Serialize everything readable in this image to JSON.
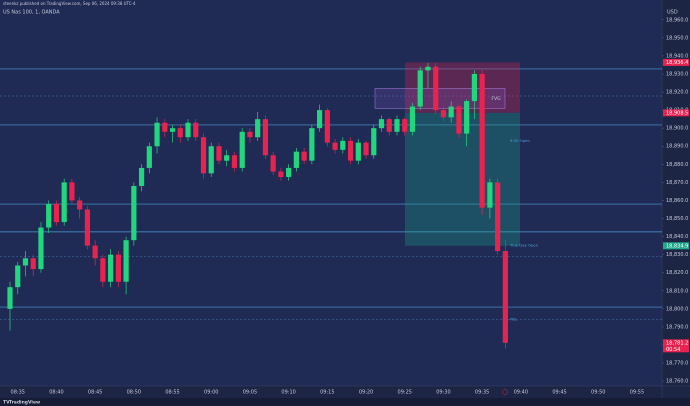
{
  "header": {
    "publisher": "steenkz published on TradingView.com, Sep 06, 2024 09:38 UTC-4",
    "symbol": "US Nas 100, 1, OANDA",
    "currency": "USD",
    "brand": "TradingView"
  },
  "chart_data": {
    "type": "candlestick",
    "categories": [
      null,
      "08:35",
      null,
      null,
      null,
      null,
      "08:40",
      null,
      null,
      null,
      null,
      "08:45",
      null,
      null,
      null,
      null,
      "08:50",
      null,
      null,
      null,
      null,
      "08:55",
      null,
      null,
      null,
      null,
      "09:00",
      null,
      null,
      null,
      null,
      "09:05",
      null,
      null,
      null,
      null,
      "09:10",
      null,
      null,
      null,
      null,
      "09:15",
      null,
      null,
      null,
      null,
      "09:20",
      null,
      null,
      null,
      null,
      "09:25",
      null,
      null,
      null,
      null,
      "09:30",
      null,
      null,
      null,
      null,
      "09:35",
      null,
      null,
      null,
      null,
      "09:40",
      null,
      null,
      null,
      null,
      "09:45",
      null,
      null,
      null,
      null,
      "09:50",
      null,
      null,
      null,
      null,
      "09:55",
      null,
      null,
      null,
      null
    ],
    "open": [
      18800,
      18812,
      18824,
      18828,
      18822,
      18845,
      18858,
      18848,
      18870,
      18860,
      18855,
      18835,
      18828,
      18815,
      18830,
      18815,
      18838,
      18868,
      18878,
      18890,
      18903,
      18898,
      18900,
      18895,
      18903,
      18895,
      18875,
      18890,
      18882,
      18885,
      18878,
      18898,
      18895,
      18905,
      18885,
      18876,
      18873,
      18878,
      18887,
      18882,
      18900,
      18910,
      18892,
      18888,
      18893,
      18882,
      18892,
      18885,
      18900,
      18905,
      18898,
      18905,
      18898,
      18912,
      18932,
      18934,
      18910,
      18906,
      18912,
      18897,
      18915,
      18930,
      18856,
      18870,
      18832,
      null,
      null,
      null,
      null,
      null,
      null,
      null,
      null,
      null,
      null,
      null,
      null,
      null,
      null,
      null,
      null,
      null,
      null,
      null,
      null,
      null
    ],
    "high": [
      18815,
      18826,
      18832,
      18830,
      18848,
      18860,
      18860,
      18872,
      18872,
      18862,
      18857,
      18838,
      18830,
      18833,
      18832,
      18840,
      18870,
      18880,
      18892,
      18906,
      18905,
      18902,
      18902,
      18905,
      18905,
      18897,
      18892,
      18892,
      18888,
      18887,
      18900,
      18900,
      18909,
      18907,
      18887,
      18878,
      18880,
      18889,
      18889,
      18902,
      18913,
      18911,
      18894,
      18895,
      18895,
      18894,
      18893,
      18902,
      18907,
      18906,
      18907,
      18906,
      18914,
      18934,
      18936,
      18936,
      18912,
      18915,
      18913,
      18916,
      18932,
      18932,
      18872,
      18872,
      18838,
      null,
      null,
      null,
      null,
      null,
      null,
      null,
      null,
      null,
      null,
      null,
      null,
      null,
      null,
      null,
      null,
      null,
      null,
      null,
      null,
      null
    ],
    "low": [
      18788,
      18808,
      18818,
      18818,
      18820,
      18842,
      18846,
      18846,
      18858,
      18850,
      18833,
      18824,
      18812,
      18812,
      18812,
      18808,
      18835,
      18865,
      18875,
      18886,
      18895,
      18892,
      18892,
      18893,
      18893,
      18872,
      18873,
      18880,
      18879,
      18876,
      18876,
      18892,
      18893,
      18883,
      18874,
      18871,
      18871,
      18876,
      18880,
      18880,
      18898,
      18890,
      18886,
      18886,
      18880,
      18880,
      18883,
      18883,
      18898,
      18896,
      18896,
      18896,
      18896,
      18910,
      18922,
      18908,
      18904,
      18903,
      18895,
      18890,
      18905,
      18852,
      18850,
      18830,
      18778,
      null,
      null,
      null,
      null,
      null,
      null,
      null,
      null,
      null,
      null,
      null,
      null,
      null,
      null,
      null,
      null,
      null,
      null,
      null,
      null,
      null
    ],
    "close": [
      18812,
      18824,
      18828,
      18822,
      18845,
      18858,
      18848,
      18870,
      18860,
      18855,
      18835,
      18828,
      18815,
      18830,
      18815,
      18838,
      18868,
      18878,
      18890,
      18903,
      18898,
      18900,
      18895,
      18903,
      18895,
      18875,
      18890,
      18882,
      18885,
      18878,
      18898,
      18895,
      18905,
      18885,
      18876,
      18873,
      18878,
      18887,
      18882,
      18900,
      18910,
      18892,
      18888,
      18893,
      18882,
      18892,
      18885,
      18900,
      18905,
      18898,
      18905,
      18898,
      18912,
      18932,
      18934,
      18910,
      18906,
      18912,
      18897,
      18915,
      18930,
      18856,
      18870,
      18832,
      18781.2,
      null,
      null,
      null,
      null,
      null,
      null,
      null,
      null,
      null,
      null,
      null,
      null,
      null,
      null,
      null,
      null,
      null,
      null,
      null,
      null,
      null
    ],
    "up_color": "#22d67e",
    "down_color": "#e8234f",
    "ylim": [
      18757.3,
      18964.3
    ],
    "yticks": [
      {
        "value": 18760,
        "label": "18,760.0"
      },
      {
        "value": 18770,
        "label": "18,770.0"
      },
      {
        "value": 18780,
        "label": "18,780.0"
      },
      {
        "value": 18790,
        "label": "18,790.0"
      },
      {
        "value": 18800,
        "label": "18,800.0"
      },
      {
        "value": 18810,
        "label": "18,810.0"
      },
      {
        "value": 18820,
        "label": "18,820.0"
      },
      {
        "value": 18830,
        "label": "18,830.0"
      },
      {
        "value": 18840,
        "label": "18,840.0"
      },
      {
        "value": 18850,
        "label": "18,850.0"
      },
      {
        "value": 18860,
        "label": "18,860.0"
      },
      {
        "value": 18870,
        "label": "18,870.0"
      },
      {
        "value": 18880,
        "label": "18,880.0"
      },
      {
        "value": 18890,
        "label": "18,890.0"
      },
      {
        "value": 18900,
        "label": "18,900.0"
      },
      {
        "value": 18910,
        "label": "18,910.0"
      },
      {
        "value": 18920,
        "label": "18,920.0"
      },
      {
        "value": 18930,
        "label": "18,930.0"
      },
      {
        "value": 18940,
        "label": "18,940.0"
      },
      {
        "value": 18950,
        "label": "18,950.0"
      },
      {
        "value": 18960,
        "label": "18,960.0"
      }
    ],
    "levels": [
      18932.8,
      18901.8,
      18858,
      18842.6,
      18801
    ],
    "dashed_levels": [
      18917.8,
      18829,
      18794
    ],
    "level_color": "#4f9fd8",
    "position": {
      "stop": 18936.4,
      "entry": 18908.5,
      "target": 18834.9,
      "stop_color": "#e8234f",
      "target_color": "#1fa88c"
    },
    "fvg": {
      "label": "FVG",
      "top": 18922,
      "bottom": 18911
    },
    "notes": [
      {
        "text": "9:30 Open",
        "value": 18893
      },
      {
        "text": "True Day Open",
        "value": 18835
      },
      {
        "text": "PDL",
        "value": 18794
      }
    ],
    "price_labels": [
      {
        "value": 18936.4,
        "label": "18,936.4",
        "color": "#e8234f"
      },
      {
        "value": 18908.5,
        "label": "18,908.5",
        "color": "#e8234f"
      },
      {
        "value": 18834.9,
        "label": "18,834.9",
        "color": "#1fa88c"
      },
      {
        "value": 18781.2,
        "label": "18,781.2",
        "color": "#e8234f"
      }
    ],
    "countdown": "00:54"
  }
}
